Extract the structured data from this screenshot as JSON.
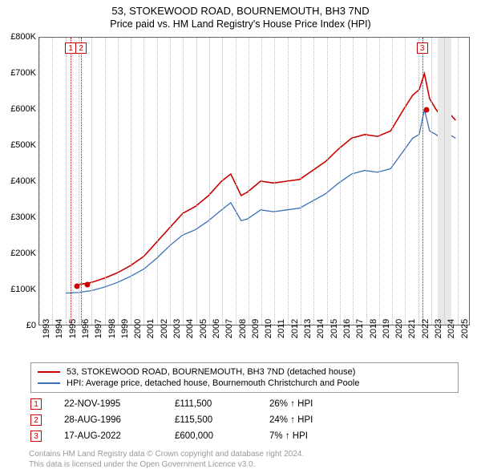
{
  "title": "53, STOKEWOOD ROAD, BOURNEMOUTH, BH3 7ND",
  "subtitle": "Price paid vs. HM Land Registry's House Price Index (HPI)",
  "chart": {
    "type": "line",
    "background_color": "#ffffff",
    "grid_color": "#bbbbbb",
    "border_color": "#666666",
    "x": {
      "min": 1993,
      "max": 2026,
      "ticks": [
        1993,
        1994,
        1995,
        1996,
        1997,
        1998,
        1999,
        2000,
        2001,
        2002,
        2003,
        2004,
        2005,
        2006,
        2007,
        2008,
        2009,
        2010,
        2011,
        2012,
        2013,
        2014,
        2015,
        2016,
        2017,
        2018,
        2019,
        2020,
        2021,
        2022,
        2023,
        2024,
        2025
      ]
    },
    "y": {
      "min": 0,
      "max": 800000,
      "ticks": [
        0,
        100000,
        200000,
        300000,
        400000,
        500000,
        600000,
        700000,
        800000
      ],
      "tick_labels": [
        "£0",
        "£100K",
        "£200K",
        "£300K",
        "£400K",
        "£500K",
        "£600K",
        "£700K",
        "£800K"
      ]
    },
    "vbands": [
      {
        "from": 2023.5,
        "to": 2024.5,
        "color": "#e8e8e8"
      }
    ],
    "marker_boxes": [
      {
        "n": "1",
        "year": 1995.4,
        "color": "#cc0000"
      },
      {
        "n": "2",
        "year": 1996.2,
        "color": "#cc0000"
      },
      {
        "n": "3",
        "year": 2022.3,
        "color": "#cc0000"
      }
    ],
    "sale_dots": [
      {
        "year": 1995.9,
        "price": 111500,
        "color": "#cc0000"
      },
      {
        "year": 1996.65,
        "price": 115500,
        "color": "#cc0000"
      },
      {
        "year": 2022.63,
        "price": 600000,
        "color": "#cc0000"
      }
    ],
    "series": [
      {
        "name": "53, STOKEWOOD ROAD, BOURNEMOUTH, BH3 7ND (detached house)",
        "color": "#cc0000",
        "line_width": 1.6,
        "points": [
          [
            1995.9,
            111500
          ],
          [
            1996.65,
            115500
          ],
          [
            1997,
            118000
          ],
          [
            1998,
            130000
          ],
          [
            1999,
            145000
          ],
          [
            2000,
            165000
          ],
          [
            2001,
            190000
          ],
          [
            2002,
            230000
          ],
          [
            2003,
            270000
          ],
          [
            2004,
            310000
          ],
          [
            2005,
            330000
          ],
          [
            2006,
            360000
          ],
          [
            2007,
            400000
          ],
          [
            2007.7,
            420000
          ],
          [
            2008.5,
            360000
          ],
          [
            2009,
            370000
          ],
          [
            2010,
            400000
          ],
          [
            2011,
            395000
          ],
          [
            2012,
            400000
          ],
          [
            2013,
            405000
          ],
          [
            2014,
            430000
          ],
          [
            2015,
            455000
          ],
          [
            2016,
            490000
          ],
          [
            2017,
            520000
          ],
          [
            2018,
            530000
          ],
          [
            2019,
            525000
          ],
          [
            2020,
            540000
          ],
          [
            2021,
            600000
          ],
          [
            2021.7,
            640000
          ],
          [
            2022.2,
            655000
          ],
          [
            2022.6,
            700000
          ],
          [
            2023,
            630000
          ],
          [
            2023.5,
            600000
          ],
          [
            2024,
            575000
          ],
          [
            2024.5,
            590000
          ],
          [
            2025,
            570000
          ]
        ]
      },
      {
        "name": "HPI: Average price, detached house, Bournemouth Christchurch and Poole",
        "color": "#3a6fb7",
        "line_width": 1.3,
        "points": [
          [
            1995,
            88000
          ],
          [
            1996,
            90000
          ],
          [
            1997,
            95000
          ],
          [
            1998,
            105000
          ],
          [
            1999,
            118000
          ],
          [
            2000,
            135000
          ],
          [
            2001,
            155000
          ],
          [
            2002,
            185000
          ],
          [
            2003,
            220000
          ],
          [
            2004,
            250000
          ],
          [
            2005,
            265000
          ],
          [
            2006,
            290000
          ],
          [
            2007,
            320000
          ],
          [
            2007.7,
            340000
          ],
          [
            2008.5,
            290000
          ],
          [
            2009,
            295000
          ],
          [
            2010,
            320000
          ],
          [
            2011,
            315000
          ],
          [
            2012,
            320000
          ],
          [
            2013,
            325000
          ],
          [
            2014,
            345000
          ],
          [
            2015,
            365000
          ],
          [
            2016,
            395000
          ],
          [
            2017,
            420000
          ],
          [
            2018,
            430000
          ],
          [
            2019,
            425000
          ],
          [
            2020,
            435000
          ],
          [
            2021,
            485000
          ],
          [
            2021.7,
            520000
          ],
          [
            2022.2,
            530000
          ],
          [
            2022.6,
            600000
          ],
          [
            2023,
            540000
          ],
          [
            2023.5,
            530000
          ],
          [
            2024,
            515000
          ],
          [
            2024.5,
            530000
          ],
          [
            2025,
            520000
          ]
        ]
      }
    ]
  },
  "legend": {
    "rows": [
      {
        "color": "#cc0000",
        "label": "53, STOKEWOOD ROAD, BOURNEMOUTH, BH3 7ND (detached house)"
      },
      {
        "color": "#3a6fb7",
        "label": "HPI: Average price, detached house, Bournemouth Christchurch and Poole"
      }
    ]
  },
  "sales": [
    {
      "n": "1",
      "color": "#cc0000",
      "date": "22-NOV-1995",
      "price": "£111,500",
      "delta": "26% ↑ HPI"
    },
    {
      "n": "2",
      "color": "#cc0000",
      "date": "28-AUG-1996",
      "price": "£115,500",
      "delta": "24% ↑ HPI"
    },
    {
      "n": "3",
      "color": "#cc0000",
      "date": "17-AUG-2022",
      "price": "£600,000",
      "delta": "7% ↑ HPI"
    }
  ],
  "attribution": {
    "line1": "Contains HM Land Registry data © Crown copyright and database right 2024.",
    "line2": "This data is licensed under the Open Government Licence v3.0."
  }
}
